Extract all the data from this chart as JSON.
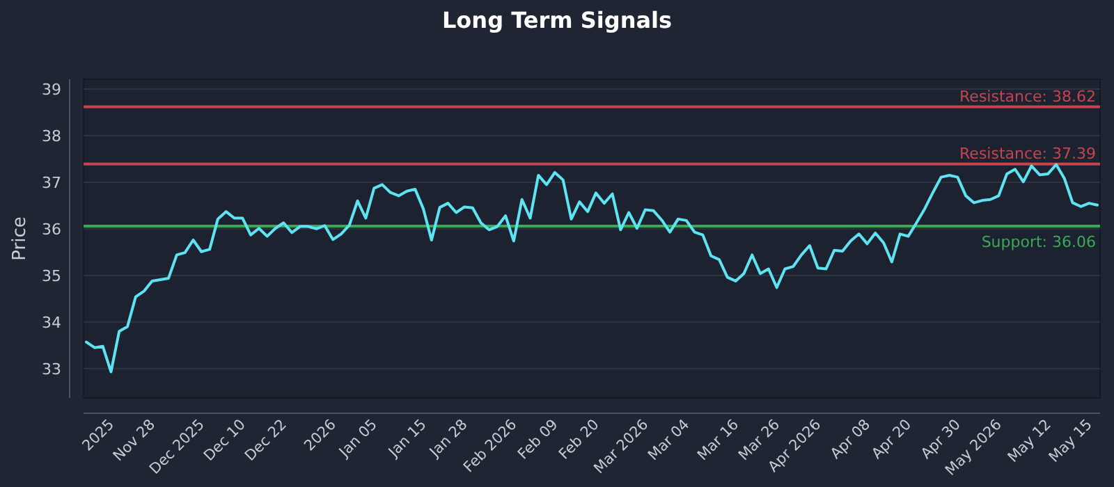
{
  "chart_data": {
    "type": "line",
    "title": "Long Term Signals",
    "ylabel": "Price",
    "categories": [
      null,
      null,
      null,
      "2025",
      null,
      null,
      null,
      null,
      "Nov 28",
      null,
      null,
      null,
      null,
      null,
      "Dec 2025",
      null,
      null,
      null,
      null,
      "Dec 10",
      null,
      null,
      null,
      null,
      "Dec 22",
      null,
      null,
      null,
      null,
      null,
      "2026",
      null,
      null,
      null,
      null,
      "Jan 05",
      null,
      null,
      null,
      null,
      null,
      "Jan 15",
      null,
      null,
      null,
      null,
      "Jan 28",
      null,
      null,
      null,
      null,
      null,
      "Feb 2026",
      null,
      null,
      null,
      null,
      "Feb 09",
      null,
      null,
      null,
      null,
      "Feb 20",
      null,
      null,
      null,
      null,
      null,
      "Mar 2026",
      null,
      null,
      null,
      null,
      "Mar 04",
      null,
      null,
      null,
      null,
      null,
      "Mar 16",
      null,
      null,
      null,
      null,
      "Mar 26",
      null,
      null,
      null,
      null,
      "Apr 2026",
      null,
      null,
      null,
      null,
      null,
      "Apr 08",
      null,
      null,
      null,
      null,
      "Apr 20",
      null,
      null,
      null,
      null,
      null,
      "Apr 30",
      null,
      null,
      null,
      null,
      "May 2026",
      null,
      null,
      null,
      null,
      null,
      "May 12",
      null,
      null,
      null,
      null,
      "May 15",
      null
    ],
    "series": [
      {
        "color": "#5ee3f2",
        "values": [
          33.57,
          33.45,
          33.48,
          32.93,
          33.8,
          33.9,
          34.54,
          34.66,
          34.88,
          34.91,
          34.94,
          35.44,
          35.49,
          35.76,
          35.51,
          35.56,
          36.21,
          36.37,
          36.23,
          36.23,
          35.87,
          36.01,
          35.84,
          36.01,
          36.13,
          35.92,
          36.05,
          36.05,
          36.0,
          36.07,
          35.77,
          35.89,
          36.08,
          36.6,
          36.23,
          36.87,
          36.95,
          36.78,
          36.71,
          36.81,
          36.85,
          36.43,
          35.76,
          36.46,
          36.55,
          36.35,
          36.47,
          36.45,
          36.13,
          35.98,
          36.05,
          36.28,
          35.74,
          36.63,
          36.23,
          37.15,
          36.95,
          37.21,
          37.05,
          36.21,
          36.58,
          36.37,
          36.77,
          36.55,
          36.75,
          35.98,
          36.35,
          36.01,
          36.41,
          36.39,
          36.19,
          35.93,
          36.21,
          36.18,
          35.93,
          35.87,
          35.42,
          35.34,
          34.96,
          34.88,
          35.04,
          35.44,
          35.04,
          35.14,
          34.74,
          35.14,
          35.19,
          35.44,
          35.64,
          35.16,
          35.14,
          35.54,
          35.52,
          35.74,
          35.89,
          35.68,
          35.91,
          35.7,
          35.29,
          35.89,
          35.84,
          36.13,
          36.43,
          36.78,
          37.11,
          37.15,
          37.11,
          36.71,
          36.56,
          36.61,
          36.63,
          36.71,
          37.18,
          37.28,
          37.01,
          37.35,
          37.16,
          37.18,
          37.38,
          37.08,
          36.56,
          36.48,
          36.55,
          36.51
        ]
      }
    ],
    "ylim": [
      32.37,
      39.21
    ],
    "yticks": [
      33,
      34,
      35,
      36,
      37,
      38,
      39
    ],
    "grid": "y",
    "ref_lines": [
      {
        "axis": "y",
        "value": 38.62,
        "label": "Resistance: 38.62",
        "color": "#c5454f"
      },
      {
        "axis": "y",
        "value": 37.39,
        "label": "Resistance: 37.39",
        "color": "#c5454f"
      },
      {
        "axis": "y",
        "value": 36.06,
        "label": "Support: 36.06",
        "color": "#3aa857"
      }
    ]
  }
}
